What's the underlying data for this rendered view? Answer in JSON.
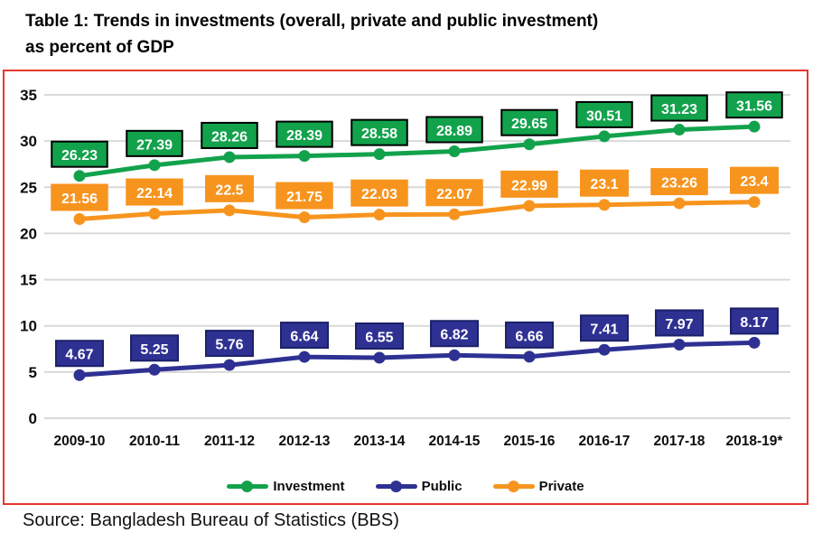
{
  "title": {
    "line1": "Table 1: Trends in investments (overall, private and public investment)",
    "line2": "as percent of GDP"
  },
  "source": "Source: Bangladesh Bureau of Statistics (BBS)",
  "colors": {
    "investment": "#12a24c",
    "public": "#2e3192",
    "private": "#f7941e",
    "chart_border": "#e5382d",
    "gridline": "#d9d9d9",
    "axis_text": "#0d0d0d",
    "label_text": "#ffffff",
    "investment_label_border": "#000000",
    "public_label_border": "#1b2168"
  },
  "legend": {
    "items": [
      {
        "label": "Investment",
        "color_key": "investment"
      },
      {
        "label": "Public",
        "color_key": "public"
      },
      {
        "label": "Private",
        "color_key": "private"
      }
    ]
  },
  "chart_data": {
    "type": "line",
    "title": "Table 1: Trends in investments (overall, private and public investment) as percent of GDP",
    "xlabel": "",
    "ylabel": "",
    "ylim": [
      0,
      35
    ],
    "yticks": [
      0,
      5,
      10,
      15,
      20,
      25,
      30,
      35
    ],
    "grid": true,
    "legend_position": "bottom",
    "categories": [
      "2009-10",
      "2010-11",
      "2011-12",
      "2012-13",
      "2013-14",
      "2014-15",
      "2015-16",
      "2016-17",
      "2017-18",
      "2018-19*"
    ],
    "series": [
      {
        "name": "Investment",
        "color_key": "investment",
        "label_box_border": "#000000",
        "values": [
          26.23,
          27.39,
          28.26,
          28.39,
          28.58,
          28.89,
          29.65,
          30.51,
          31.23,
          31.56
        ]
      },
      {
        "name": "Public",
        "color_key": "public",
        "label_box_border": "#1b2168",
        "values": [
          4.67,
          5.25,
          5.76,
          6.64,
          6.55,
          6.82,
          6.66,
          7.41,
          7.97,
          8.17
        ]
      },
      {
        "name": "Private",
        "color_key": "private",
        "label_box_border": null,
        "values": [
          21.56,
          22.14,
          22.5,
          21.75,
          22.03,
          22.07,
          22.99,
          23.1,
          23.26,
          23.4
        ]
      }
    ]
  }
}
